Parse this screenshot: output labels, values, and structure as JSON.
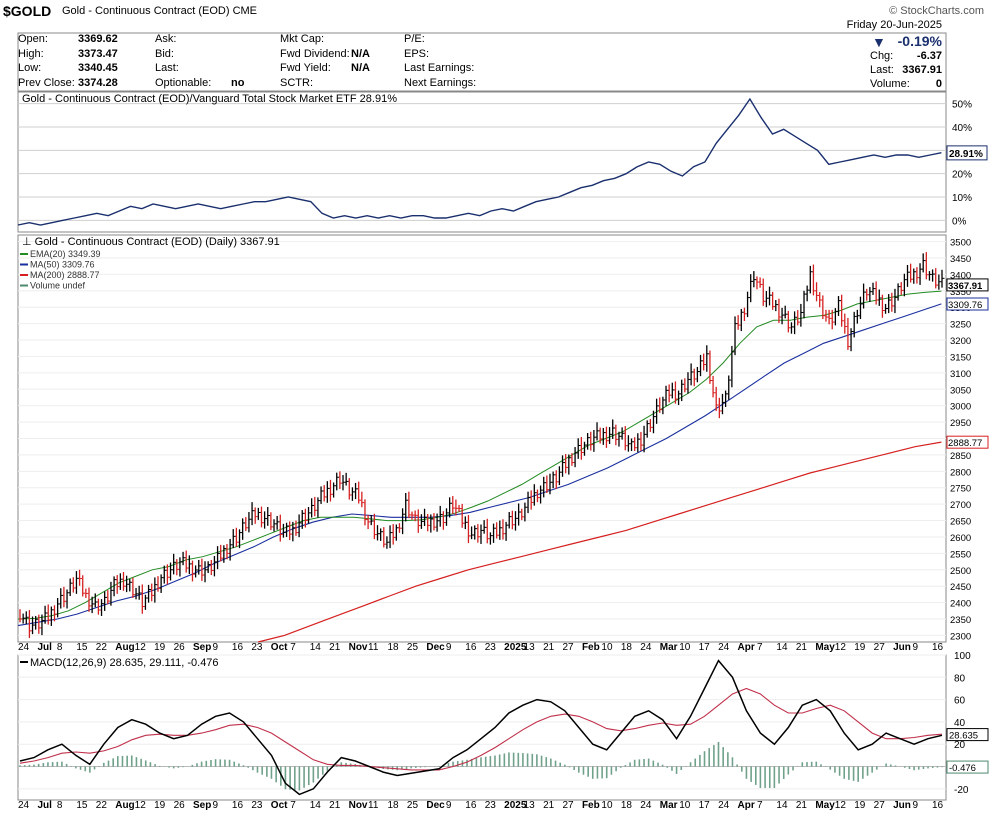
{
  "header": {
    "symbol": "$GOLD",
    "name": "Gold - Continuous Contract (EOD)",
    "exchange": "CME",
    "watermark": "© StockCharts.com",
    "date": "Friday  20-Jun-2025",
    "change_pct": "-0.19%",
    "chg_label": "Chg:",
    "chg_value": "-6.37",
    "last_label": "Last:",
    "last_value": "3367.91",
    "volume_label": "Volume:",
    "volume_value": "0"
  },
  "quote": {
    "col1": [
      {
        "label": "Open:",
        "value": "3369.62"
      },
      {
        "label": "High:",
        "value": "3373.47"
      },
      {
        "label": "Low:",
        "value": "3340.45"
      },
      {
        "label": "Prev Close:",
        "value": "3374.28"
      }
    ],
    "col2": [
      {
        "label": "Ask:",
        "value": ""
      },
      {
        "label": "Bid:",
        "value": ""
      },
      {
        "label": "Last:",
        "value": ""
      },
      {
        "label": "Optionable:",
        "value": "no"
      }
    ],
    "col3": [
      {
        "label": "Mkt Cap:",
        "value": ""
      },
      {
        "label": "Fwd Dividend:",
        "value": "N/A"
      },
      {
        "label": "Fwd Yield:",
        "value": "N/A"
      },
      {
        "label": "SCTR:",
        "value": ""
      }
    ],
    "col4": [
      {
        "label": "P/E:",
        "value": ""
      },
      {
        "label": "EPS:",
        "value": ""
      },
      {
        "label": "Last Earnings:",
        "value": ""
      },
      {
        "label": "Next Earnings:",
        "value": ""
      }
    ]
  },
  "chart_data": [
    {
      "type": "line",
      "title": "Gold - Continuous Contract (EOD)/Vanguard Total Stock Market ETF 28.91%",
      "last_label": "28.91%",
      "y_ticks": [
        "50%",
        "40%",
        "30%",
        "20%",
        "10%",
        "0%"
      ],
      "ylim": [
        -5,
        55
      ],
      "color": "#1a2f6e",
      "values": [
        -2,
        -1,
        -2,
        -1,
        0,
        1,
        2,
        3,
        2,
        4,
        6,
        5,
        7,
        6,
        5,
        6,
        7,
        6,
        5,
        6,
        7,
        8,
        8,
        9,
        10,
        9,
        8,
        3,
        1,
        2,
        1,
        2,
        1,
        2,
        1,
        2,
        2,
        1,
        1,
        2,
        3,
        2,
        4,
        5,
        4,
        6,
        8,
        9,
        10,
        12,
        14,
        15,
        17,
        18,
        20,
        23,
        25,
        24,
        21,
        19,
        23,
        25,
        33,
        39,
        45,
        52,
        44,
        37,
        39,
        36,
        33,
        30,
        24,
        25,
        26,
        27,
        28,
        27,
        28,
        28,
        27,
        28,
        29
      ]
    },
    {
      "type": "candlestick",
      "title": "Gold - Continuous Contract (EOD) (Daily) 3367.91",
      "ylim": [
        2280,
        3520
      ],
      "y_ticks": [
        "3500",
        "3450",
        "3400",
        "3350",
        "3300",
        "3250",
        "3200",
        "3150",
        "3100",
        "3050",
        "3000",
        "2950",
        "2900",
        "2850",
        "2800",
        "2750",
        "2700",
        "2650",
        "2600",
        "2550",
        "2500",
        "2450",
        "2400",
        "2350",
        "2300"
      ],
      "series": [
        {
          "name": "EMA(20) 3349.39",
          "color": "#228b22",
          "last": "3349.39"
        },
        {
          "name": "MA(50) 3309.76",
          "color": "#1a2f9e",
          "last": "3309.76"
        },
        {
          "name": "MA(200) 2888.77",
          "color": "#d62020",
          "last": "2888.77"
        },
        {
          "name": "Volume undef",
          "color": "#4d8a6e"
        }
      ],
      "last_price_label": "3367.91",
      "closes": [
        2370,
        2330,
        2335,
        2355,
        2400,
        2430,
        2470,
        2420,
        2390,
        2400,
        2450,
        2470,
        2440,
        2400,
        2430,
        2480,
        2500,
        2520,
        2510,
        2500,
        2500,
        2530,
        2570,
        2600,
        2640,
        2670,
        2660,
        2640,
        2610,
        2620,
        2660,
        2680,
        2720,
        2750,
        2780,
        2740,
        2720,
        2650,
        2610,
        2580,
        2620,
        2700,
        2650,
        2640,
        2650,
        2660,
        2700,
        2650,
        2610,
        2620,
        2600,
        2620,
        2650,
        2660,
        2700,
        2740,
        2760,
        2780,
        2820,
        2860,
        2880,
        2900,
        2910,
        2920,
        2900,
        2870,
        2900,
        2950,
        3000,
        3040,
        3040,
        3080,
        3100,
        3150,
        2990,
        3020,
        3230,
        3300,
        3400,
        3330,
        3310,
        3280,
        3240,
        3280,
        3400,
        3310,
        3250,
        3300,
        3200,
        3290,
        3350,
        3330,
        3300,
        3330,
        3380,
        3400,
        3430,
        3385,
        3368
      ],
      "ema20": [
        2350,
        2352,
        2360,
        2375,
        2400,
        2430,
        2460,
        2480,
        2500,
        2510,
        2530,
        2540,
        2555,
        2570,
        2590,
        2610,
        2630,
        2650,
        2660,
        2660,
        2660,
        2655,
        2650,
        2650,
        2652,
        2660,
        2672,
        2690,
        2710,
        2735,
        2760,
        2790,
        2820,
        2850,
        2880,
        2900,
        2920,
        2950,
        2980,
        3010,
        3040,
        3080,
        3130,
        3190,
        3240,
        3260,
        3260,
        3270,
        3275,
        3290,
        3310,
        3320,
        3330,
        3340,
        3345,
        3349
      ],
      "ma50": [
        2330,
        2340,
        2350,
        2365,
        2385,
        2405,
        2420,
        2440,
        2465,
        2490,
        2520,
        2545,
        2570,
        2600,
        2625,
        2645,
        2660,
        2670,
        2665,
        2660,
        2660,
        2660,
        2665,
        2675,
        2690,
        2705,
        2720,
        2740,
        2760,
        2785,
        2810,
        2840,
        2870,
        2900,
        2935,
        2970,
        3010,
        3050,
        3090,
        3130,
        3160,
        3190,
        3210,
        3230,
        3250,
        3270,
        3290,
        3310
      ],
      "ma200": [
        2280,
        2300,
        2330,
        2360,
        2390,
        2420,
        2450,
        2475,
        2500,
        2520,
        2540,
        2560,
        2580,
        2600,
        2620,
        2645,
        2670,
        2695,
        2720,
        2745,
        2770,
        2795,
        2815,
        2835,
        2855,
        2875,
        2889
      ]
    },
    {
      "type": "line",
      "title": "MACD(12,26,9) 28.635, 29.111, -0.476",
      "y_ticks": [
        "100",
        "80",
        "60",
        "40",
        "20",
        "-20"
      ],
      "ylim": [
        -30,
        100
      ],
      "macd_last": "28.635",
      "hist_last": "-0.476",
      "macd": [
        5,
        8,
        15,
        20,
        10,
        2,
        20,
        35,
        42,
        38,
        30,
        25,
        28,
        38,
        45,
        48,
        40,
        25,
        10,
        -15,
        -25,
        -20,
        -5,
        8,
        5,
        0,
        -5,
        -8,
        -6,
        -4,
        -2,
        8,
        15,
        25,
        35,
        48,
        55,
        60,
        58,
        50,
        35,
        20,
        15,
        30,
        45,
        50,
        42,
        25,
        45,
        70,
        95,
        80,
        50,
        30,
        20,
        35,
        55,
        60,
        50,
        30,
        15,
        20,
        30,
        25,
        20,
        25,
        28
      ],
      "signal": [
        3,
        5,
        8,
        12,
        13,
        12,
        14,
        18,
        24,
        28,
        29,
        28,
        28,
        30,
        33,
        37,
        38,
        35,
        30,
        22,
        14,
        6,
        2,
        1,
        1,
        0,
        -1,
        -2,
        -3,
        -3,
        -3,
        0,
        4,
        10,
        17,
        25,
        33,
        40,
        45,
        47,
        45,
        40,
        34,
        32,
        34,
        37,
        39,
        37,
        38,
        45,
        55,
        65,
        70,
        65,
        55,
        48,
        48,
        52,
        55,
        50,
        40,
        30,
        25,
        25,
        26,
        28,
        29
      ]
    }
  ],
  "x_axis": {
    "labels": [
      "24",
      "Jul",
      "8",
      "15",
      "22",
      "Aug",
      "12",
      "19",
      "26",
      "Sep",
      "9",
      "16",
      "23",
      "Oct",
      "7",
      "14",
      "21",
      "Nov",
      "11",
      "18",
      "25",
      "Dec",
      "9",
      "16",
      "23",
      "2025",
      "13",
      "21",
      "27",
      "Feb",
      "10",
      "18",
      "24",
      "Mar",
      "10",
      "17",
      "24",
      "Apr",
      "7",
      "14",
      "21",
      "May",
      "12",
      "19",
      "27",
      "Jun",
      "9",
      "16"
    ],
    "bold": [
      "Jul",
      "Aug",
      "Sep",
      "Oct",
      "Nov",
      "Dec",
      "2025",
      "Feb",
      "Mar",
      "Apr",
      "May",
      "Jun"
    ]
  }
}
